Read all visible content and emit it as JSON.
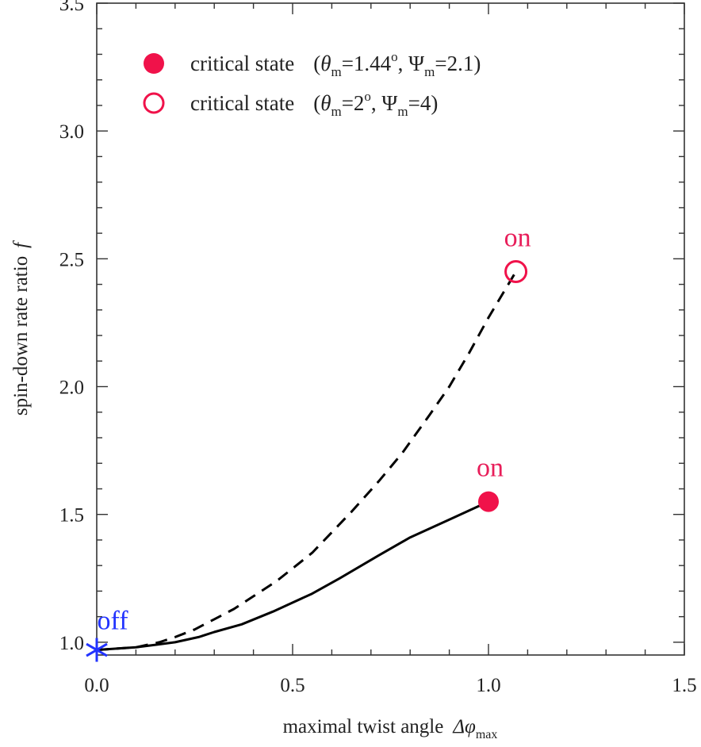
{
  "chart_data": {
    "type": "line",
    "xlabel": "maximal twist angle",
    "xlabel_symbol": "Δφ",
    "xlabel_sub": "max",
    "ylabel": "spin-down rate ratio",
    "ylabel_symbol": "f",
    "xlim": [
      0.0,
      1.5
    ],
    "ylim": [
      0.95,
      3.5
    ],
    "xticks": [
      "0.0",
      "0.5",
      "1.0",
      "1.5"
    ],
    "xtick_values": [
      0.0,
      0.5,
      1.0,
      1.5
    ],
    "yticks": [
      "1.0",
      "1.5",
      "2.0",
      "2.5",
      "3.0",
      "3.5"
    ],
    "ytick_values": [
      1.0,
      1.5,
      2.0,
      2.5,
      3.0,
      3.5
    ],
    "x_minor_step": 0.1,
    "y_minor_step": 0.1,
    "grid": false,
    "legend_position": "top-left",
    "colors": {
      "marker": "#f0124a",
      "off": "#2233ff",
      "on": "#e81e5a",
      "line": "#000000",
      "axis": "#333333"
    },
    "series": [
      {
        "style": "solid",
        "x": [
          0.0,
          0.1,
          0.15,
          0.2,
          0.26,
          0.3,
          0.37,
          0.45,
          0.55,
          0.62,
          0.72,
          0.8,
          0.9,
          1.0
        ],
        "y": [
          0.97,
          0.98,
          0.99,
          1.0,
          1.02,
          1.04,
          1.07,
          1.12,
          1.19,
          1.25,
          1.34,
          1.41,
          1.48,
          1.55
        ],
        "end_marker": "filled-circle"
      },
      {
        "style": "dashed",
        "x": [
          0.0,
          0.1,
          0.16,
          0.2,
          0.25,
          0.3,
          0.35,
          0.4,
          0.46,
          0.55,
          0.6,
          0.65,
          0.72,
          0.78,
          0.85,
          0.9,
          0.95,
          1.0,
          1.07
        ],
        "y": [
          0.97,
          0.98,
          1.0,
          1.02,
          1.05,
          1.09,
          1.13,
          1.18,
          1.24,
          1.35,
          1.43,
          1.51,
          1.63,
          1.74,
          1.89,
          2.0,
          2.13,
          2.27,
          2.45
        ],
        "end_marker": "open-circle"
      }
    ],
    "legend": [
      {
        "marker": "filled-circle",
        "text": "critical state",
        "theta": "1.44",
        "psi": "2.1"
      },
      {
        "marker": "open-circle",
        "text": "critical state",
        "theta": "2",
        "psi": "4"
      }
    ],
    "annotations": [
      {
        "text": "off",
        "x": 0.0,
        "y": 0.97,
        "color_key": "off"
      },
      {
        "text": "on",
        "x": 1.0,
        "y": 1.55,
        "color_key": "on"
      },
      {
        "text": "on",
        "x": 1.07,
        "y": 2.45,
        "color_key": "on"
      }
    ]
  }
}
